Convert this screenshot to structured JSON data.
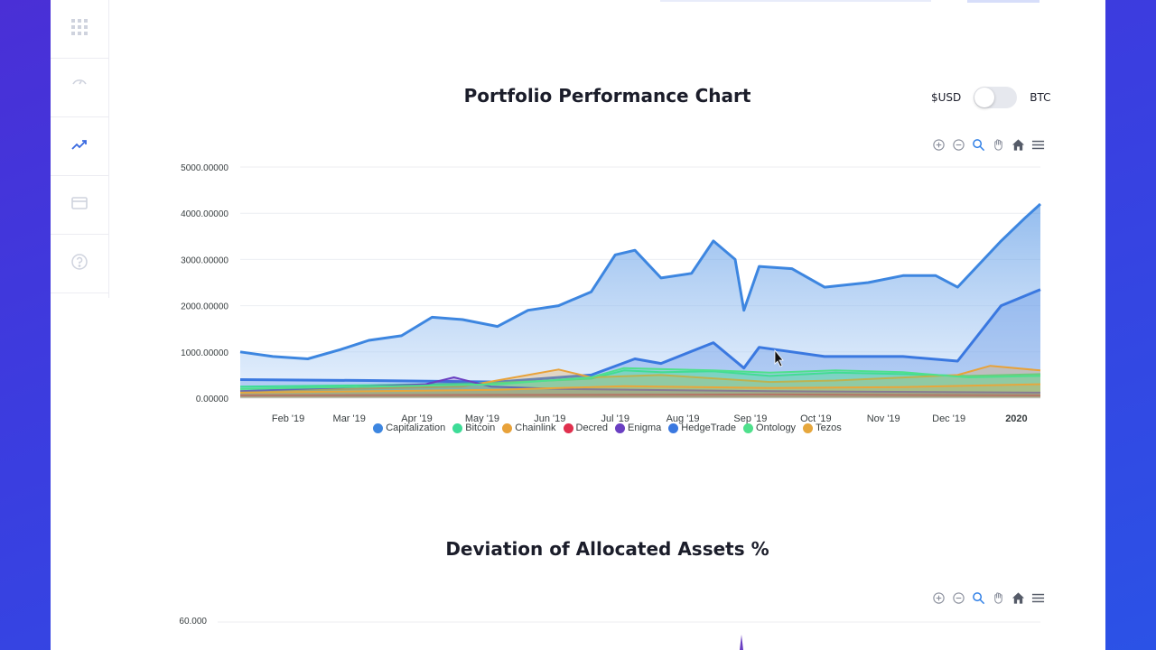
{
  "sidebar": {
    "items": [
      {
        "name": "grid-icon",
        "active": false
      },
      {
        "name": "gauge-icon",
        "active": false
      },
      {
        "name": "trend-icon",
        "active": true
      },
      {
        "name": "card-icon",
        "active": false
      },
      {
        "name": "help-icon",
        "active": false
      }
    ]
  },
  "currency": {
    "left_label": "$USD",
    "right_label": "BTC",
    "selected": "$USD"
  },
  "chart1_title": "Portfolio Performance Chart",
  "chart2_title": "Deviation of Allocated Assets %",
  "colors": {
    "capitalization": "#3d86e0",
    "bitcoin": "#3ddc97",
    "chainlink": "#e8a23a",
    "decred": "#e0304e",
    "enigma": "#6a3fc2",
    "hedgetrade": "#3a78e0",
    "ontology": "#4fe08c",
    "tezos": "#e6a73d"
  },
  "chart_data": [
    {
      "type": "area",
      "title": "Portfolio Performance Chart",
      "xlabel": "",
      "ylabel": "",
      "ylim": [
        0,
        5000
      ],
      "y_ticks": [
        "0.00000",
        "1000.00000",
        "2000.00000",
        "3000.00000",
        "4000.00000",
        "5000.00000"
      ],
      "x_ticks": [
        "Feb '19",
        "Mar '19",
        "Apr '19",
        "May '19",
        "Jun '19",
        "Jul '19",
        "Aug '19",
        "Sep '19",
        "Oct '19",
        "Nov '19",
        "Dec '19",
        "2020"
      ],
      "x_range": [
        "2019-01-10",
        "2020-01-12"
      ],
      "legend_position": "bottom",
      "series": [
        {
          "name": "Capitalization",
          "x": [
            "2019-01-10",
            "2019-01-25",
            "2019-02-10",
            "2019-02-25",
            "2019-03-10",
            "2019-03-25",
            "2019-04-08",
            "2019-04-22",
            "2019-05-08",
            "2019-05-22",
            "2019-06-05",
            "2019-06-20",
            "2019-07-01",
            "2019-07-10",
            "2019-07-22",
            "2019-08-05",
            "2019-08-15",
            "2019-08-25",
            "2019-08-29",
            "2019-09-05",
            "2019-09-20",
            "2019-10-05",
            "2019-10-25",
            "2019-11-10",
            "2019-11-25",
            "2019-12-05",
            "2019-12-15",
            "2019-12-25",
            "2020-01-05",
            "2020-01-12"
          ],
          "values": [
            1000,
            900,
            850,
            1050,
            1250,
            1350,
            1750,
            1700,
            1550,
            1900,
            2000,
            2300,
            3100,
            3200,
            2600,
            2700,
            3400,
            3000,
            1900,
            2850,
            2800,
            2400,
            2500,
            2650,
            2650,
            2400,
            2900,
            3400,
            3900,
            4200
          ]
        },
        {
          "name": "Bitcoin",
          "x": [
            "2019-01-10",
            "2019-03-10",
            "2019-05-08",
            "2019-06-20",
            "2019-07-05",
            "2019-07-22",
            "2019-08-15",
            "2019-09-10",
            "2019-10-10",
            "2019-11-10",
            "2019-12-10",
            "2020-01-12"
          ],
          "values": [
            250,
            280,
            330,
            420,
            600,
            560,
            580,
            480,
            550,
            520,
            480,
            520
          ]
        },
        {
          "name": "Chainlink",
          "x": [
            "2019-01-10",
            "2019-04-22",
            "2019-05-22",
            "2019-06-05",
            "2019-06-20",
            "2019-07-22",
            "2019-09-10",
            "2019-10-10",
            "2019-12-05",
            "2019-12-20",
            "2020-01-12"
          ],
          "values": [
            150,
            250,
            500,
            620,
            450,
            500,
            350,
            380,
            500,
            700,
            600
          ]
        },
        {
          "name": "Decred",
          "x": [
            "2019-01-10",
            "2019-06-05",
            "2019-09-10",
            "2020-01-12"
          ],
          "values": [
            60,
            70,
            80,
            60
          ]
        },
        {
          "name": "Enigma",
          "x": [
            "2019-01-10",
            "2019-04-05",
            "2019-04-18",
            "2019-05-05",
            "2019-06-05",
            "2019-09-10",
            "2020-01-12"
          ],
          "values": [
            150,
            300,
            450,
            250,
            200,
            150,
            120
          ]
        },
        {
          "name": "HedgeTrade",
          "x": [
            "2019-01-10",
            "2019-03-10",
            "2019-05-08",
            "2019-06-20",
            "2019-07-10",
            "2019-07-22",
            "2019-08-15",
            "2019-08-29",
            "2019-09-05",
            "2019-10-05",
            "2019-11-10",
            "2019-12-05",
            "2019-12-15",
            "2019-12-25",
            "2020-01-12"
          ],
          "values": [
            400,
            380,
            350,
            500,
            850,
            750,
            1200,
            650,
            1100,
            900,
            900,
            800,
            1400,
            2000,
            2350
          ]
        },
        {
          "name": "Ontology",
          "x": [
            "2019-01-10",
            "2019-05-08",
            "2019-06-20",
            "2019-07-05",
            "2019-08-15",
            "2019-09-10",
            "2019-10-10",
            "2019-11-10",
            "2019-12-10",
            "2020-01-12"
          ],
          "values": [
            200,
            300,
            450,
            650,
            600,
            550,
            600,
            560,
            450,
            480
          ]
        },
        {
          "name": "Tezos",
          "x": [
            "2019-01-10",
            "2019-05-08",
            "2019-07-05",
            "2019-09-10",
            "2019-11-10",
            "2020-01-12"
          ],
          "values": [
            120,
            180,
            260,
            220,
            240,
            300
          ]
        }
      ]
    },
    {
      "type": "line",
      "title": "Deviation of Allocated Assets %",
      "y_ticks": [
        "60.000"
      ],
      "series": []
    }
  ]
}
